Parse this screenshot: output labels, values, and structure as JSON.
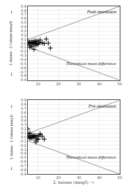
{
  "chart_data": [
    {
      "type": "scatter",
      "title": "Post-monsoon",
      "ylabel": "Σ Anions - Σ Cations (meq/l)",
      "annotations": [
        {
          "text": "Theoretical mean difference"
        },
        {
          "text": "↑"
        },
        {
          "text": "↓"
        }
      ],
      "xlim": [
        5,
        50
      ],
      "xticks": [
        10,
        20,
        30,
        40,
        50
      ],
      "ylim": [
        -0.9,
        0.9
      ],
      "yticks": [
        -0.9,
        -0.8,
        -0.7,
        -0.6,
        -0.5,
        -0.4,
        -0.3,
        -0.2,
        -0.1,
        {
          "value": 0.0,
          "label": "0.0"
        },
        0.1,
        0.2,
        0.3,
        0.4,
        0.5,
        0.6,
        0.7,
        0.8,
        0.9
      ],
      "grid": true,
      "series": [
        {
          "type": "line",
          "line_style": "solid",
          "color": "#999999",
          "x": [
            5,
            50
          ],
          "values": [
            0.09,
            0.9
          ]
        },
        {
          "type": "line",
          "line_style": "solid",
          "color": "#999999",
          "x": [
            5,
            50
          ],
          "values": [
            -0.09,
            -0.9
          ]
        },
        {
          "type": "scatter",
          "marker": "+",
          "color": "black",
          "x": [
            5,
            5,
            5,
            6,
            6,
            6,
            7,
            7,
            7,
            7,
            8,
            8,
            8,
            9,
            9,
            9,
            9,
            10,
            10,
            10,
            11,
            11,
            12,
            13,
            14,
            15,
            16,
            6,
            7,
            8,
            9,
            10,
            6,
            7,
            8,
            9
          ],
          "values": [
            0.02,
            -0.02,
            0.05,
            0.0,
            0.02,
            -0.05,
            0.01,
            0.03,
            -0.01,
            -0.08,
            0.0,
            0.02,
            -0.04,
            0.0,
            -0.02,
            0.04,
            0.06,
            0.0,
            -0.02,
            0.05,
            0.08,
            0.02,
            0.01,
            -0.01,
            0.1,
            0.0,
            -0.12,
            -0.1,
            0.02,
            -0.15,
            0.0,
            -0.02,
            0.02,
            0.02,
            0.05,
            -0.05
          ]
        }
      ]
    },
    {
      "type": "scatter",
      "title": "Pre-monsoon",
      "xlabel": "Σ Anions (meq/l)  →",
      "ylabel": "Σ Anions - Σ Cations (meq/l)",
      "annotations": [
        {
          "text": "Theoretical mean difference"
        },
        {
          "text": "↑"
        },
        {
          "text": "↓"
        }
      ],
      "xlim": [
        5,
        50
      ],
      "xticks": [
        10,
        20,
        30,
        40,
        50
      ],
      "ylim": [
        -0.9,
        0.9
      ],
      "yticks": [
        -0.9,
        -0.8,
        -0.7,
        -0.6,
        -0.5,
        -0.4,
        -0.3,
        -0.2,
        -0.1,
        {
          "value": 0.0,
          "label": "0.0"
        },
        0.1,
        0.2,
        0.3,
        0.4,
        0.5,
        0.6,
        0.7,
        0.8,
        0.9
      ],
      "grid": true,
      "series": [
        {
          "type": "line",
          "line_style": "solid",
          "color": "#999999",
          "x": [
            5,
            50
          ],
          "values": [
            0.09,
            0.9
          ]
        },
        {
          "type": "line",
          "line_style": "solid",
          "color": "#999999",
          "x": [
            5,
            50
          ],
          "values": [
            -0.09,
            -0.9
          ]
        },
        {
          "type": "scatter",
          "marker": "+",
          "color": "black",
          "x": [
            5,
            5,
            6,
            6,
            6,
            7,
            7,
            7,
            8,
            8,
            9,
            9,
            10,
            10,
            11,
            12,
            13,
            5,
            6,
            7,
            8,
            9,
            10,
            5,
            6,
            7,
            8,
            9,
            10,
            11
          ],
          "values": [
            0.02,
            0.08,
            0.0,
            0.04,
            -0.03,
            0.01,
            0.05,
            -0.02,
            0.0,
            0.02,
            -0.02,
            0.04,
            0.02,
            -0.05,
            0.08,
            0.02,
            -0.05,
            0.2,
            0.1,
            0.0,
            0.02,
            -0.12,
            -0.05,
            0.02,
            -0.02,
            0.0,
            0.04,
            -0.08,
            0.03,
            0.06
          ]
        }
      ]
    }
  ]
}
